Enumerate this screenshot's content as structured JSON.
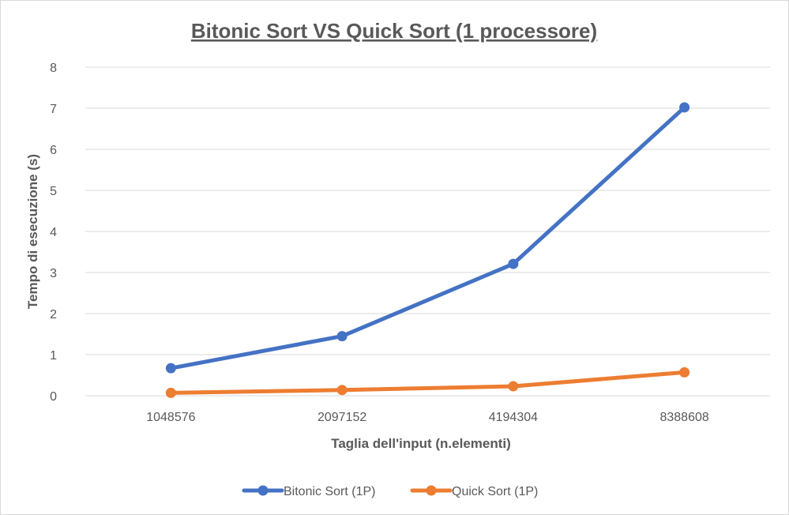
{
  "chart_data": {
    "type": "line",
    "title": "Bitonic Sort VS Quick Sort (1 processore)",
    "xlabel": "Taglia dell'input (n.elementi)",
    "ylabel": "Tempo di esecuzione (s)",
    "categories": [
      "1048576",
      "2097152",
      "4194304",
      "8388608"
    ],
    "ylim": [
      0,
      8
    ],
    "yticks": [
      "0",
      "1",
      "2",
      "3",
      "4",
      "5",
      "6",
      "7",
      "8"
    ],
    "grid": true,
    "legend_position": "bottom",
    "series": [
      {
        "name": "Bitonic Sort (1P)",
        "color": "#4472C4",
        "values": [
          0.67,
          1.45,
          3.21,
          7.02
        ]
      },
      {
        "name": "Quick Sort (1P)",
        "color": "#ED7D31",
        "values": [
          0.07,
          0.14,
          0.23,
          0.57
        ]
      }
    ]
  }
}
